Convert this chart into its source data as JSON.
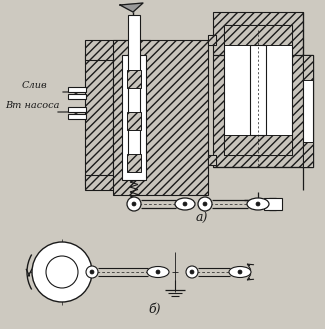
{
  "bg_color": "#cdc9c0",
  "line_color": "#1a1a1a",
  "title_a": "а)",
  "title_b": "б)",
  "label_sliv": "Слив",
  "label_nasos": "Вт насоса"
}
